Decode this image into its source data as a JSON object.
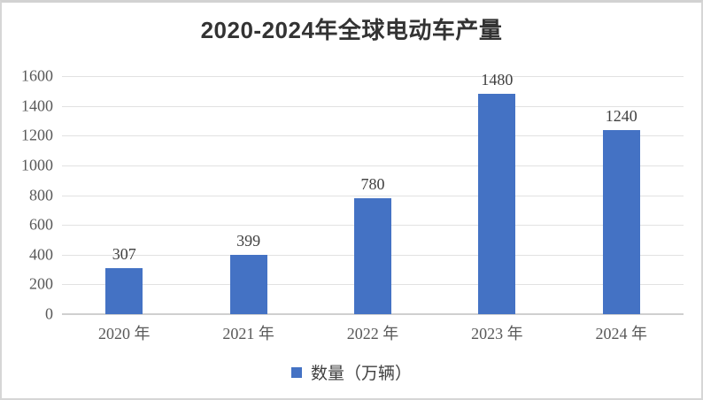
{
  "chart_data": {
    "type": "bar",
    "title": "2020-2024年全球电动车产量",
    "categories": [
      "2020 年",
      "2021 年",
      "2022 年",
      "2023 年",
      "2024 年"
    ],
    "values": [
      307,
      399,
      780,
      1480,
      1240
    ],
    "data_labels": [
      "307",
      "399",
      "780",
      "1480",
      "1240"
    ],
    "series_name": "数量（万辆）",
    "legend_label": "数量（万辆）",
    "legend_position": "bottom",
    "xlabel": "",
    "ylabel": "",
    "ylim": [
      0,
      1600
    ],
    "yticks": [
      0,
      200,
      400,
      600,
      800,
      1000,
      1200,
      1400,
      1600
    ],
    "grid": true,
    "colors": {
      "bar": "#4472C4",
      "gridline": "#E2E2E2",
      "axis_line": "#D0D0D0",
      "tick_text": "#595959",
      "data_label_text": "#404040",
      "title_text": "#333333",
      "frame_border": "#D6D6D6",
      "background": "#FFFFFF"
    }
  }
}
